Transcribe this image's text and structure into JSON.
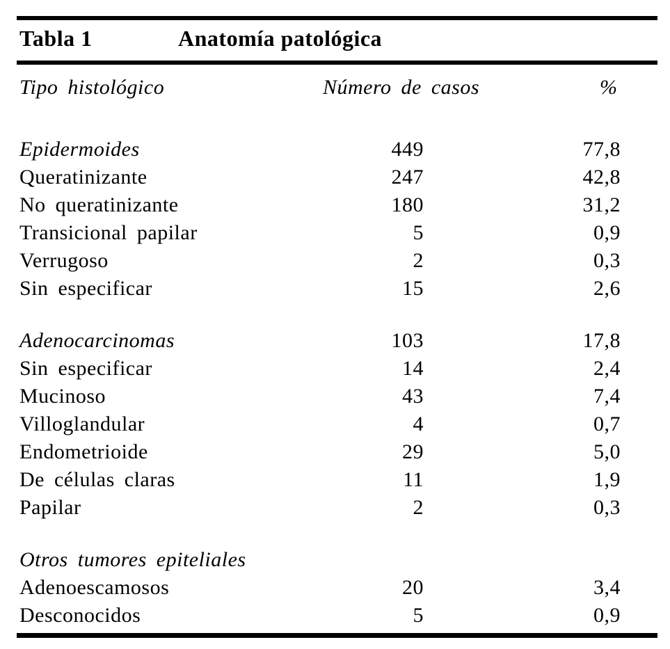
{
  "document": {
    "title_label": "Tabla 1",
    "title_heading": "Anatomía patológica"
  },
  "columns": {
    "tipo": "Tipo histológico",
    "casos": "Número de casos",
    "pct": "%"
  },
  "table": {
    "rows": [
      {
        "label": "Epidermoides",
        "cases": "449",
        "pct": "77,8"
      },
      {
        "label": "Queratinizante",
        "cases": "247",
        "pct": "42,8"
      },
      {
        "label": "No queratinizante",
        "cases": "180",
        "pct": "31,2"
      },
      {
        "label": "Transicional papilar",
        "cases": "5",
        "pct": "0,9"
      },
      {
        "label": "Verrugoso",
        "cases": "2",
        "pct": "0,3"
      },
      {
        "label": "Sin especificar",
        "cases": "15",
        "pct": "2,6"
      },
      {
        "label": "Adenocarcinomas",
        "cases": "103",
        "pct": "17,8"
      },
      {
        "label": "Sin especificar",
        "cases": "14",
        "pct": "2,4"
      },
      {
        "label": "Mucinoso",
        "cases": "43",
        "pct": "7,4"
      },
      {
        "label": "Villoglandular",
        "cases": "4",
        "pct": "0,7"
      },
      {
        "label": "Endometrioide",
        "cases": "29",
        "pct": "5,0"
      },
      {
        "label": "De células claras",
        "cases": "11",
        "pct": "1,9"
      },
      {
        "label": "Papilar",
        "cases": "2",
        "pct": "0,3"
      },
      {
        "label": "Otros tumores epiteliales",
        "cases": "",
        "pct": ""
      },
      {
        "label": "Adenoescamosos",
        "cases": "20",
        "pct": "3,4"
      },
      {
        "label": "Desconocidos",
        "cases": "5",
        "pct": "0,9"
      }
    ]
  },
  "colors": {
    "text": "#000000",
    "background": "#ffffff",
    "rule": "#000000"
  }
}
